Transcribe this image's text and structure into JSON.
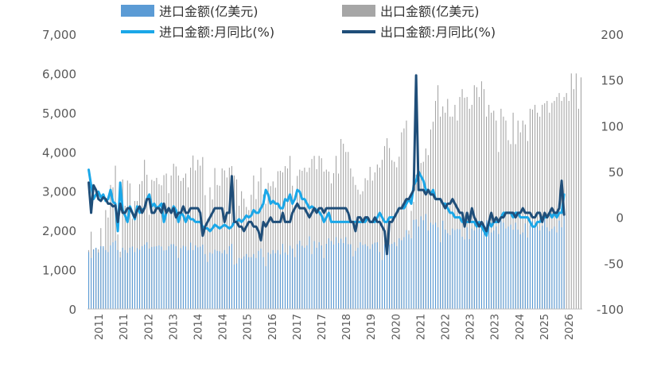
{
  "chart_data": {
    "type": "bar+line",
    "title": "",
    "xlabel": "",
    "ylabel_left": "",
    "ylabel_right": "",
    "ylim_left": [
      0,
      7000
    ],
    "ylim_right": [
      -100,
      200
    ],
    "left_ticks": [
      "0",
      "1,000",
      "2,000",
      "3,000",
      "4,000",
      "5,000",
      "6,000",
      "7,000"
    ],
    "right_ticks": [
      "-100",
      "-50",
      "0",
      "50",
      "100",
      "150",
      "200"
    ],
    "x_tick_labels": [
      "2011",
      "2011",
      "2012",
      "2013",
      "2014",
      "2014",
      "2015",
      "2016",
      "2017",
      "2017",
      "2018",
      "2019",
      "2020",
      "2021",
      "2022",
      "2023",
      "2023",
      "2024",
      "2025",
      "2026"
    ],
    "legend": {
      "position": "top",
      "items": [
        {
          "label": "进口金额(亿美元)",
          "kind": "bar",
          "color": "#5b9bd5"
        },
        {
          "label": "出口金额(亿美元)",
          "kind": "bar",
          "color": "#a6a6a6"
        },
        {
          "label": "进口金额:月同比(%)",
          "kind": "line",
          "color": "#1aa7e8"
        },
        {
          "label": "出口金额:月同比(%)",
          "kind": "line",
          "color": "#1f4e79"
        }
      ]
    },
    "x_start": "2011-01",
    "series": [
      {
        "name": "进口金额(亿美元)",
        "axis": "left",
        "type": "bar",
        "color": "#5b9bd5",
        "values": [
          1450,
          1300,
          1520,
          1560,
          1440,
          1600,
          1600,
          1500,
          1450,
          1620,
          1700,
          1740,
          1500,
          1310,
          1560,
          1500,
          1430,
          1560,
          1590,
          1450,
          1550,
          1510,
          1600,
          1640,
          1700,
          1540,
          1580,
          1590,
          1600,
          1620,
          1590,
          1490,
          1500,
          1600,
          1650,
          1650,
          1600,
          1300,
          1550,
          1610,
          1590,
          1500,
          1690,
          1500,
          1620,
          1570,
          1590,
          1640,
          1400,
          1200,
          1440,
          1410,
          1510,
          1480,
          1470,
          1420,
          1500,
          1400,
          1600,
          1660,
          1130,
          1160,
          1300,
          1280,
          1340,
          1400,
          1320,
          1320,
          1400,
          1300,
          1480,
          1540,
          1320,
          1090,
          1440,
          1400,
          1500,
          1420,
          1500,
          1390,
          1660,
          1440,
          1380,
          1610,
          1540,
          1320,
          1650,
          1740,
          1610,
          1560,
          1620,
          1850,
          1400,
          1730,
          1560,
          1700,
          1620,
          1300,
          1660,
          1800,
          1730,
          1640,
          1830,
          1680,
          1790,
          1680,
          1830,
          1650,
          1650,
          1340,
          1480,
          1560,
          1700,
          1630,
          1650,
          1600,
          1530,
          1650,
          1690,
          1700,
          1450,
          1250,
          1650,
          1750,
          1640,
          1660,
          1700,
          1600,
          1800,
          1750,
          1830,
          2010,
          1900,
          1800,
          2270,
          2280,
          2100,
          2360,
          2260,
          2420,
          2000,
          2200,
          2150,
          2200,
          2080,
          1700,
          2250,
          2020,
          1930,
          1880,
          2050,
          2010,
          2040,
          2030,
          1840,
          1770,
          2080,
          1780,
          2050,
          2000,
          2080,
          2050,
          2000,
          2160,
          2260,
          2180,
          1950,
          2000,
          2100,
          1910,
          2250,
          2200,
          2050,
          2100,
          2150,
          2020,
          2200,
          2020,
          1900,
          1950,
          2180,
          1820,
          2130,
          2240,
          2070,
          2100,
          2000,
          2120,
          2400,
          2080,
          1980,
          2040,
          2100,
          1950,
          2250,
          2080,
          2460
        ]
      },
      {
        "name": "出口金额(亿美元)",
        "axis": "left",
        "type": "bar",
        "color": "#a6a6a6",
        "values": [
          1500,
          1970,
          1520,
          1550,
          1520,
          2060,
          1550,
          2520,
          2330,
          3160,
          3100,
          3650,
          1900,
          1460,
          3300,
          2630,
          3270,
          3200,
          2300,
          2750,
          2750,
          3180,
          3260,
          3800,
          3420,
          2400,
          3290,
          3260,
          3340,
          3180,
          3150,
          3410,
          3450,
          2950,
          3400,
          3700,
          3630,
          3400,
          3260,
          3340,
          3450,
          3100,
          3600,
          3910,
          3530,
          3800,
          3650,
          3870,
          2900,
          2300,
          3100,
          2790,
          3590,
          3160,
          3140,
          3580,
          3530,
          3350,
          3600,
          3640,
          3400,
          3300,
          2630,
          3000,
          2810,
          2600,
          2520,
          2910,
          3400,
          2800,
          3250,
          3600,
          2920,
          2680,
          3210,
          3130,
          3250,
          3090,
          3510,
          3520,
          3480,
          3640,
          3580,
          3900,
          3140,
          2640,
          3390,
          3550,
          3520,
          3600,
          3490,
          3600,
          3820,
          3900,
          3560,
          3900,
          3840,
          3500,
          3550,
          3500,
          3200,
          3460,
          3900,
          3450,
          4330,
          4210,
          4000,
          4000,
          3580,
          3370,
          3160,
          3040,
          2920,
          3000,
          3330,
          3280,
          3620,
          3270,
          3480,
          3680,
          3600,
          3800,
          4150,
          4350,
          4100,
          3790,
          3750,
          3610,
          3880,
          4500,
          4600,
          4800,
          2000,
          2500,
          2730,
          3420,
          3480,
          3720,
          3750,
          4090,
          3920,
          4570,
          4770,
          5300,
          5700,
          4900,
          5160,
          5000,
          5350,
          4900,
          4900,
          5200,
          4800,
          5400,
          5600,
          5380,
          5400,
          5100,
          5200,
          5700,
          5650,
          5400,
          5800,
          5600,
          4900,
          5200,
          5000,
          5050,
          4800,
          4000,
          5100,
          4900,
          4800,
          4300,
          4200,
          5000,
          4200,
          4800,
          4500,
          4800,
          4700,
          4280,
          5100,
          5080,
          5200,
          5000,
          4900,
          5200,
          5240,
          5300,
          5000,
          5250,
          5300,
          5400,
          5500,
          5300,
          5400,
          5500,
          5300,
          6000,
          5600,
          6000,
          5100,
          5900
        ]
      },
      {
        "name": "进口金额:月同比(%)",
        "axis": "right",
        "type": "line",
        "color": "#1aa7e8",
        "values": [
          52,
          35,
          20,
          25,
          28,
          22,
          25,
          18,
          20,
          30,
          17,
          15,
          -15,
          38,
          8,
          2,
          -5,
          12,
          5,
          -2,
          12,
          5,
          8,
          10,
          20,
          25,
          12,
          15,
          10,
          12,
          15,
          -5,
          5,
          10,
          5,
          12,
          8,
          -5,
          5,
          2,
          -5,
          2,
          -2,
          -2,
          -5,
          -5,
          -5,
          -10,
          -12,
          -12,
          -15,
          -12,
          -8,
          -10,
          -12,
          -10,
          -8,
          -10,
          -12,
          -10,
          -5,
          -5,
          -2,
          -5,
          -2,
          2,
          0,
          2,
          8,
          5,
          5,
          10,
          15,
          30,
          25,
          15,
          18,
          15,
          15,
          10,
          10,
          20,
          18,
          25,
          15,
          20,
          30,
          28,
          20,
          20,
          15,
          10,
          12,
          10,
          8,
          6,
          2,
          -5,
          0,
          5,
          -5,
          -5,
          -5,
          -5,
          -5,
          -5,
          -5,
          -5,
          -5,
          -5,
          -5,
          -5,
          -5,
          -5,
          -5,
          0,
          -5,
          -5,
          -5,
          0,
          5,
          0,
          -5,
          -5,
          0,
          0,
          0,
          5,
          10,
          10,
          10,
          15,
          20,
          15,
          35,
          40,
          50,
          45,
          40,
          30,
          30,
          25,
          30,
          20,
          20,
          20,
          15,
          15,
          10,
          5,
          5,
          0,
          0,
          0,
          -5,
          -5,
          -5,
          -5,
          -5,
          -5,
          -10,
          -5,
          -10,
          -15,
          -20,
          -5,
          -10,
          -5,
          -5,
          -5,
          0,
          5,
          5,
          5,
          5,
          0,
          5,
          5,
          0,
          0,
          0,
          0,
          -5,
          -10,
          -10,
          -5,
          -5,
          0,
          0,
          0,
          5,
          0,
          5,
          0,
          5,
          5,
          25
        ]
      },
      {
        "name": "出口金额:月同比(%)",
        "axis": "right",
        "type": "line",
        "color": "#1f4e79",
        "values": [
          38,
          5,
          35,
          30,
          20,
          18,
          22,
          20,
          15,
          15,
          12,
          13,
          -5,
          15,
          5,
          5,
          10,
          10,
          5,
          0,
          8,
          12,
          5,
          10,
          20,
          20,
          5,
          5,
          10,
          10,
          5,
          15,
          5,
          10,
          5,
          10,
          0,
          5,
          5,
          12,
          5,
          5,
          10,
          10,
          10,
          10,
          5,
          -20,
          -10,
          -5,
          0,
          5,
          10,
          10,
          10,
          10,
          -5,
          5,
          5,
          45,
          -5,
          -5,
          -10,
          -10,
          -15,
          -10,
          -5,
          -5,
          -10,
          -10,
          -15,
          -25,
          -5,
          -10,
          -5,
          0,
          -5,
          -5,
          -5,
          -5,
          5,
          -5,
          -5,
          -5,
          5,
          10,
          15,
          10,
          10,
          10,
          5,
          0,
          5,
          10,
          5,
          10,
          10,
          5,
          10,
          10,
          10,
          10,
          10,
          10,
          10,
          10,
          10,
          5,
          -5,
          -5,
          -15,
          0,
          0,
          -5,
          0,
          0,
          -5,
          -5,
          0,
          -5,
          -5,
          -10,
          -15,
          -40,
          -5,
          -5,
          0,
          5,
          10,
          10,
          15,
          20,
          20,
          25,
          30,
          155,
          30,
          30,
          30,
          25,
          30,
          25,
          25,
          20,
          20,
          20,
          15,
          10,
          15,
          15,
          20,
          15,
          10,
          5,
          5,
          -10,
          5,
          -5,
          10,
          0,
          -5,
          -10,
          -5,
          -10,
          -15,
          -5,
          5,
          -5,
          0,
          -5,
          0,
          0,
          5,
          5,
          5,
          5,
          0,
          5,
          5,
          10,
          5,
          5,
          5,
          0,
          0,
          5,
          5,
          -5,
          5,
          0,
          5,
          10,
          5,
          5,
          10,
          40,
          3
        ]
      }
    ]
  }
}
